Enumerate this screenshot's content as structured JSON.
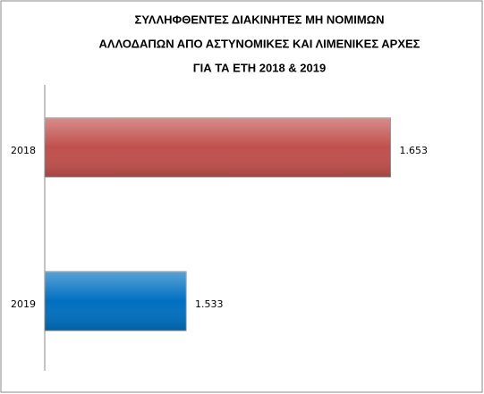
{
  "chart_data": {
    "type": "hbar",
    "title": [
      "ΣΥΛΛΗΦΘΕΝΤΕΣ ΔΙΑΚΙΝΗΤΕΣ ΜΗ ΝΟΜΙΜΩΝ",
      "ΑΛΛΟΔΑΠΩΝ ΑΠΟ ΑΣΤΥΝΟΜΙΚΕΣ ΚΑΙ ΛΙΜΕΝΙΚΕΣ ΑΡΧΕΣ",
      "ΓΙΑ ΤΑ ΕΤΗ 2018 & 2019"
    ],
    "categories": [
      "2018",
      "2019"
    ],
    "values": [
      1653,
      1533
    ],
    "value_labels": [
      "1.653",
      "1.533"
    ],
    "colors": [
      "#c0504d",
      "#0070c0"
    ],
    "xlim": [
      1450,
      1700
    ]
  }
}
